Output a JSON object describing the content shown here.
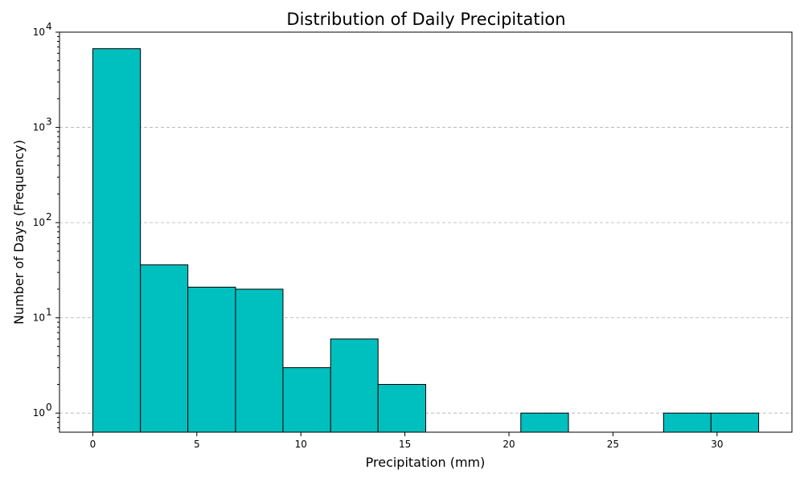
{
  "chart_data": {
    "type": "bar",
    "title": "Distribution of Daily Precipitation",
    "xlabel": "Precipitation (mm)",
    "ylabel": "Number of Days (Frequency)",
    "yscale": "log",
    "xlim": [
      -1.6,
      33.6
    ],
    "ylim": [
      0.63,
      10000
    ],
    "xticks": [
      0,
      5,
      10,
      15,
      20,
      25,
      30
    ],
    "yticks": [
      {
        "value": 1,
        "mantissa": "10",
        "exponent": "0"
      },
      {
        "value": 10,
        "mantissa": "10",
        "exponent": "1"
      },
      {
        "value": 100,
        "mantissa": "10",
        "exponent": "2"
      },
      {
        "value": 1000,
        "mantissa": "10",
        "exponent": "3"
      },
      {
        "value": 10000,
        "mantissa": "10",
        "exponent": "4"
      }
    ],
    "grid": "y-major",
    "bar_color": "#00bfbf",
    "edge_color": "#000000",
    "bins": [
      {
        "x0": 0.0,
        "x1": 2.29,
        "count": 6700
      },
      {
        "x0": 2.29,
        "x1": 4.57,
        "count": 36
      },
      {
        "x0": 4.57,
        "x1": 6.86,
        "count": 21
      },
      {
        "x0": 6.86,
        "x1": 9.14,
        "count": 20
      },
      {
        "x0": 9.14,
        "x1": 11.43,
        "count": 3
      },
      {
        "x0": 11.43,
        "x1": 13.71,
        "count": 6
      },
      {
        "x0": 13.71,
        "x1": 16.0,
        "count": 2
      },
      {
        "x0": 16.0,
        "x1": 18.29,
        "count": 0
      },
      {
        "x0": 18.29,
        "x1": 20.57,
        "count": 0
      },
      {
        "x0": 20.57,
        "x1": 22.86,
        "count": 1
      },
      {
        "x0": 22.86,
        "x1": 25.14,
        "count": 0
      },
      {
        "x0": 25.14,
        "x1": 27.43,
        "count": 0
      },
      {
        "x0": 27.43,
        "x1": 29.71,
        "count": 1
      },
      {
        "x0": 29.71,
        "x1": 32.0,
        "count": 1
      }
    ]
  }
}
